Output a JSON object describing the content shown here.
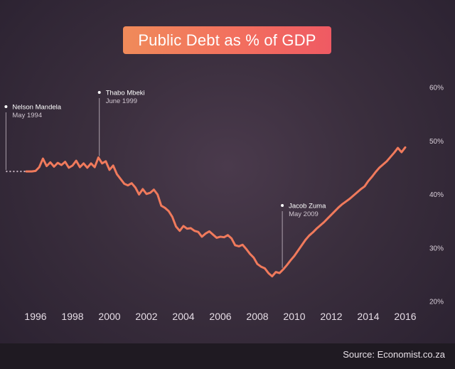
{
  "chart_data": {
    "type": "line",
    "title": "Public Debt as % of GDP",
    "xlabel": "",
    "ylabel": "",
    "xlim": [
      1994.7,
      2016.6
    ],
    "ylim": [
      20,
      60
    ],
    "x_ticks": [
      "1996",
      "1998",
      "2000",
      "2002",
      "2004",
      "2006",
      "2008",
      "2010",
      "2012",
      "2014",
      "2016"
    ],
    "y_ticks": [
      "60%",
      "50%",
      "40%",
      "30%",
      "20%"
    ],
    "grid": false,
    "legend": "none",
    "line_color": "#f07a5c",
    "series": [
      {
        "x": [
          1994.4,
          1994.6,
          1994.8,
          1995.0,
          1995.5,
          1995.8,
          1996.0,
          1996.2,
          1996.4,
          1996.6,
          1996.8,
          1997.0,
          1997.2,
          1997.4,
          1997.6,
          1997.8,
          1998.0,
          1998.2,
          1998.4,
          1998.6,
          1998.8,
          1999.0,
          1999.2,
          1999.4,
          1999.6,
          1999.8,
          2000.0,
          2000.2,
          2000.4,
          2000.6,
          2000.8,
          2001.0,
          2001.2,
          2001.4,
          2001.6,
          2001.8,
          2002.0,
          2002.2,
          2002.4,
          2002.6,
          2002.8,
          2003.0,
          2003.2,
          2003.4,
          2003.6,
          2003.8,
          2004.0,
          2004.2,
          2004.4,
          2004.6,
          2004.8,
          2005.0,
          2005.2,
          2005.4,
          2005.6,
          2005.8,
          2006.0,
          2006.2,
          2006.4,
          2006.6,
          2006.8,
          2007.0,
          2007.2,
          2007.4,
          2007.6,
          2007.8,
          2008.0,
          2008.2,
          2008.4,
          2008.6,
          2008.8,
          2009.0,
          2009.2,
          2009.4,
          2009.6,
          2009.8,
          2010.0,
          2010.2,
          2010.4,
          2010.6,
          2010.8,
          2011.0,
          2011.2,
          2011.4,
          2011.6,
          2011.8,
          2012.0,
          2012.2,
          2012.4,
          2012.6,
          2012.8,
          2013.0,
          2013.2,
          2013.4,
          2013.6,
          2013.8,
          2014.0,
          2014.2,
          2014.4,
          2014.6,
          2014.8,
          2015.0,
          2015.2,
          2015.4,
          2015.6,
          2015.8,
          2016.0
        ],
        "y": [
          44.3,
          44.3,
          44.3,
          44.3,
          44.3,
          44.3,
          44.4,
          45.1,
          46.7,
          45.3,
          46.0,
          45.2,
          45.9,
          45.5,
          46.1,
          45.0,
          45.4,
          46.3,
          45.1,
          45.8,
          45.0,
          45.8,
          45.1,
          46.9,
          45.8,
          46.2,
          44.6,
          45.4,
          43.8,
          42.9,
          42.0,
          41.7,
          42.1,
          41.3,
          40.0,
          41.0,
          40.1,
          40.3,
          40.9,
          40.0,
          37.9,
          37.5,
          36.9,
          35.8,
          34.0,
          33.2,
          34.1,
          33.6,
          33.7,
          33.2,
          33.0,
          32.1,
          32.7,
          33.1,
          32.5,
          31.9,
          32.1,
          32.0,
          32.4,
          31.8,
          30.5,
          30.3,
          30.6,
          29.8,
          28.9,
          28.2,
          27.0,
          26.5,
          26.2,
          25.3,
          24.7,
          25.5,
          25.3,
          26.0,
          26.8,
          27.7,
          28.5,
          29.5,
          30.5,
          31.5,
          32.3,
          32.9,
          33.6,
          34.2,
          34.8,
          35.5,
          36.2,
          36.9,
          37.6,
          38.2,
          38.7,
          39.2,
          39.8,
          40.4,
          41.0,
          41.5,
          42.5,
          43.3,
          44.2,
          45.0,
          45.6,
          46.2,
          47.0,
          47.8,
          48.7,
          47.9,
          48.8
        ]
      }
    ],
    "annotations": [
      {
        "name": "Nelson Mandela",
        "date": "May 1994",
        "x": 1994.4
      },
      {
        "name": "Thabo Mbeki",
        "date": "June 1999",
        "x": 1999.45
      },
      {
        "name": "Jacob Zuma",
        "date": "May 2009",
        "x": 2009.35
      }
    ]
  },
  "source": "Source: Economist.co.za"
}
